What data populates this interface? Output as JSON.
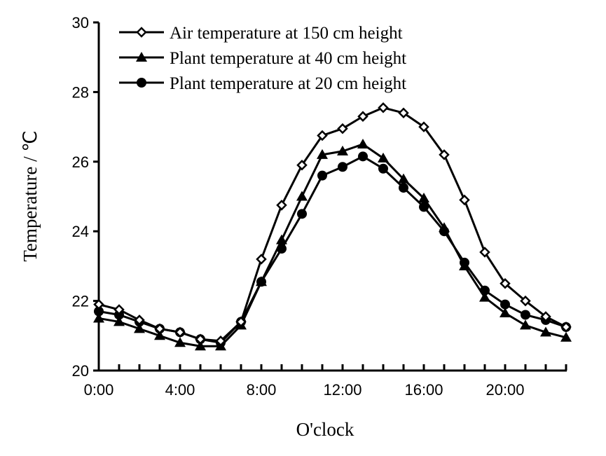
{
  "chart_data": {
    "type": "line",
    "title": "",
    "xlabel": "O'clock",
    "ylabel": "Temperature / ℃",
    "ylim": [
      20,
      30
    ],
    "yticks": [
      "20",
      "22",
      "24",
      "26",
      "28",
      "30"
    ],
    "xticks": [
      "0:00",
      "4:00",
      "8:00",
      "12:00",
      "16:00",
      "20:00"
    ],
    "x": [
      0,
      1,
      2,
      3,
      4,
      5,
      6,
      7,
      8,
      9,
      10,
      11,
      12,
      13,
      14,
      15,
      16,
      17,
      18,
      19,
      20,
      21,
      22,
      23
    ],
    "grid": false,
    "legend_position": "top-left",
    "series": [
      {
        "name": "Air temperature at 150 cm height",
        "marker": "open-diamond",
        "values": [
          21.9,
          21.75,
          21.45,
          21.2,
          21.1,
          20.9,
          20.85,
          21.4,
          23.2,
          24.75,
          25.9,
          26.75,
          26.95,
          27.3,
          27.55,
          27.4,
          27.0,
          26.2,
          24.9,
          23.4,
          22.5,
          22.0,
          21.55,
          21.25
        ]
      },
      {
        "name": "Plant temperature at 40 cm height",
        "marker": "filled-triangle",
        "values": [
          21.5,
          21.4,
          21.2,
          21.0,
          20.8,
          20.7,
          20.7,
          21.3,
          22.55,
          23.75,
          25.0,
          26.2,
          26.3,
          26.5,
          26.1,
          25.5,
          24.95,
          24.1,
          23.0,
          22.1,
          21.65,
          21.3,
          21.1,
          20.95
        ]
      },
      {
        "name": "Plant temperature at 20 cm height",
        "marker": "filled-circle",
        "values": [
          21.7,
          21.6,
          21.4,
          21.2,
          21.1,
          20.9,
          20.8,
          21.4,
          22.55,
          23.5,
          24.5,
          25.6,
          25.85,
          26.15,
          25.8,
          25.25,
          24.7,
          24.0,
          23.1,
          22.3,
          21.9,
          21.6,
          21.45,
          21.25
        ]
      }
    ]
  }
}
